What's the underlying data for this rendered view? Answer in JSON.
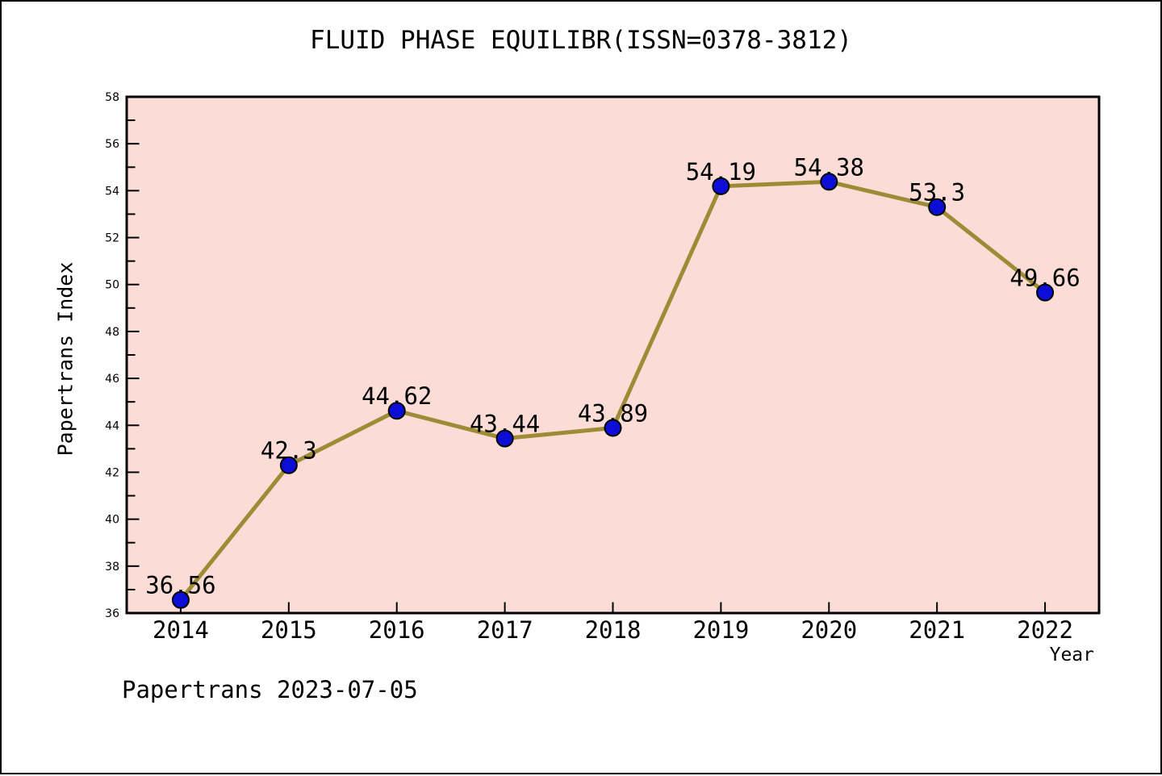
{
  "footer": "Papertrans 2023-07-05",
  "chart_data": {
    "type": "line",
    "title": "FLUID PHASE EQUILIBR(ISSN=0378-3812)",
    "xlabel": "Year",
    "ylabel": "Papertrans Index",
    "categories": [
      "2014",
      "2015",
      "2016",
      "2017",
      "2018",
      "2019",
      "2020",
      "2021",
      "2022"
    ],
    "values": [
      36.56,
      42.3,
      44.62,
      43.44,
      43.89,
      54.19,
      54.38,
      53.3,
      49.66
    ],
    "point_labels": [
      "36.56",
      "42.3",
      "44.62",
      "43.44",
      "43.89",
      "54.19",
      "54.38",
      "53.3",
      "49.66"
    ],
    "ylim": [
      36,
      58
    ],
    "ytick_step": 2,
    "yminor_step": 1,
    "grid": false,
    "legend": "none",
    "colors": {
      "plot_bg": "#fbdcd6",
      "line": "#9d8b35",
      "marker": "#0d0dd8",
      "marker_edge": "#000000",
      "axis": "#000000",
      "text": "#000000"
    }
  }
}
